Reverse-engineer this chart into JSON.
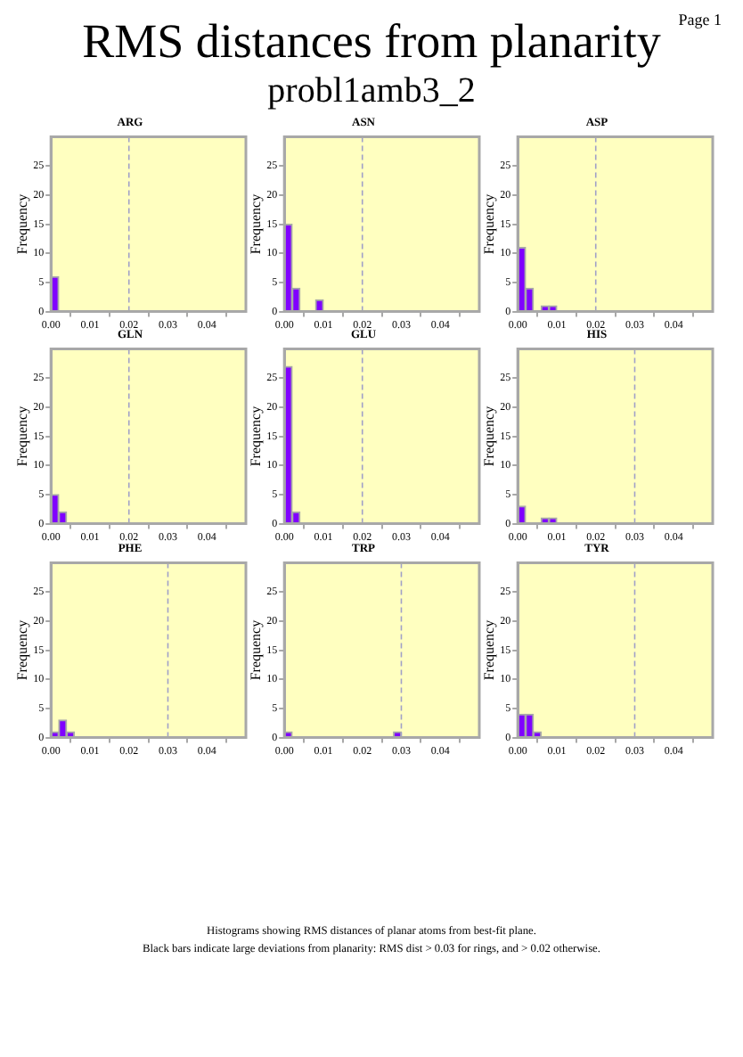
{
  "chart_data": [
    {
      "type": "histogram",
      "title": "ARG",
      "ylabel": "Frequency",
      "annotations": [
        "RMS distances from planarity",
        "probl1amb3_2",
        "Page 1",
        "Histograms showing RMS distances of planar atoms from best-fit plane.",
        "Black bars indicate large deviations from planarity: RMS dist > 0.03 for rings, and > 0.02 otherwise."
      ],
      "bins": [
        0,
        0.002,
        0.004,
        0.006,
        0.008,
        0.01,
        0.012,
        0.014,
        0.016,
        0.018,
        0.02,
        0.022,
        0.024,
        0.026,
        0.028,
        0.03,
        0.032,
        0.034,
        0.036,
        0.038,
        0.04,
        0.042,
        0.044,
        0.046,
        0.048,
        0.05
      ],
      "values": [
        6,
        0,
        0,
        0,
        0,
        0,
        0,
        0,
        0,
        0,
        0,
        0,
        0,
        0,
        0,
        0,
        0,
        0,
        0,
        0,
        0,
        0,
        0,
        0,
        0
      ],
      "color": "#8000ff",
      "xlim": [
        0,
        0.05
      ],
      "xticks": [
        {
          "value": 0,
          "label": "0.00"
        },
        {
          "value": 0.01,
          "label": "0.01"
        },
        {
          "value": 0.02,
          "label": "0.02"
        },
        {
          "value": 0.03,
          "label": "0.03"
        },
        {
          "value": 0.04,
          "label": "0.04"
        }
      ],
      "ylim": [
        0,
        30
      ],
      "yticks": [
        0,
        5,
        10,
        15,
        20,
        25
      ],
      "ref_lines": [
        {
          "axis": "x",
          "value": 0.02,
          "color": "#a0a0c8",
          "line_style": "dashed"
        }
      ]
    },
    {
      "type": "histogram",
      "title": "ASN",
      "ylabel": "Frequency",
      "bins": [
        0,
        0.002,
        0.004,
        0.006,
        0.008,
        0.01,
        0.012,
        0.014,
        0.016,
        0.018,
        0.02,
        0.022,
        0.024,
        0.026,
        0.028,
        0.03,
        0.032,
        0.034,
        0.036,
        0.038,
        0.04,
        0.042,
        0.044,
        0.046,
        0.048,
        0.05
      ],
      "values": [
        15,
        4,
        0,
        0,
        2,
        0,
        0,
        0,
        0,
        0,
        0,
        0,
        0,
        0,
        0,
        0,
        0,
        0,
        0,
        0,
        0,
        0,
        0,
        0,
        0
      ],
      "color": "#8000ff",
      "xlim": [
        0,
        0.05
      ],
      "xticks": [
        {
          "value": 0,
          "label": "0.00"
        },
        {
          "value": 0.01,
          "label": "0.01"
        },
        {
          "value": 0.02,
          "label": "0.02"
        },
        {
          "value": 0.03,
          "label": "0.03"
        },
        {
          "value": 0.04,
          "label": "0.04"
        }
      ],
      "ylim": [
        0,
        30
      ],
      "yticks": [
        0,
        5,
        10,
        15,
        20,
        25
      ],
      "ref_lines": [
        {
          "axis": "x",
          "value": 0.02,
          "color": "#a0a0c8",
          "line_style": "dashed"
        }
      ]
    },
    {
      "type": "histogram",
      "title": "ASP",
      "ylabel": "Frequency",
      "bins": [
        0,
        0.002,
        0.004,
        0.006,
        0.008,
        0.01,
        0.012,
        0.014,
        0.016,
        0.018,
        0.02,
        0.022,
        0.024,
        0.026,
        0.028,
        0.03,
        0.032,
        0.034,
        0.036,
        0.038,
        0.04,
        0.042,
        0.044,
        0.046,
        0.048,
        0.05
      ],
      "values": [
        11,
        4,
        0,
        1,
        1,
        0,
        0,
        0,
        0,
        0,
        0,
        0,
        0,
        0,
        0,
        0,
        0,
        0,
        0,
        0,
        0,
        0,
        0,
        0,
        0
      ],
      "color": "#8000ff",
      "xlim": [
        0,
        0.05
      ],
      "xticks": [
        {
          "value": 0,
          "label": "0.00"
        },
        {
          "value": 0.01,
          "label": "0.01"
        },
        {
          "value": 0.02,
          "label": "0.02"
        },
        {
          "value": 0.03,
          "label": "0.03"
        },
        {
          "value": 0.04,
          "label": "0.04"
        }
      ],
      "ylim": [
        0,
        30
      ],
      "yticks": [
        0,
        5,
        10,
        15,
        20,
        25
      ],
      "ref_lines": [
        {
          "axis": "x",
          "value": 0.02,
          "color": "#a0a0c8",
          "line_style": "dashed"
        }
      ]
    },
    {
      "type": "histogram",
      "title": "GLN",
      "ylabel": "Frequency",
      "bins": [
        0,
        0.002,
        0.004,
        0.006,
        0.008,
        0.01,
        0.012,
        0.014,
        0.016,
        0.018,
        0.02,
        0.022,
        0.024,
        0.026,
        0.028,
        0.03,
        0.032,
        0.034,
        0.036,
        0.038,
        0.04,
        0.042,
        0.044,
        0.046,
        0.048,
        0.05
      ],
      "values": [
        5,
        2,
        0,
        0,
        0,
        0,
        0,
        0,
        0,
        0,
        0,
        0,
        0,
        0,
        0,
        0,
        0,
        0,
        0,
        0,
        0,
        0,
        0,
        0,
        0
      ],
      "color": "#8000ff",
      "xlim": [
        0,
        0.05
      ],
      "xticks": [
        {
          "value": 0,
          "label": "0.00"
        },
        {
          "value": 0.01,
          "label": "0.01"
        },
        {
          "value": 0.02,
          "label": "0.02"
        },
        {
          "value": 0.03,
          "label": "0.03"
        },
        {
          "value": 0.04,
          "label": "0.04"
        }
      ],
      "ylim": [
        0,
        30
      ],
      "yticks": [
        0,
        5,
        10,
        15,
        20,
        25
      ],
      "ref_lines": [
        {
          "axis": "x",
          "value": 0.02,
          "color": "#a0a0c8",
          "line_style": "dashed"
        }
      ]
    },
    {
      "type": "histogram",
      "title": "GLU",
      "ylabel": "Frequency",
      "bins": [
        0,
        0.002,
        0.004,
        0.006,
        0.008,
        0.01,
        0.012,
        0.014,
        0.016,
        0.018,
        0.02,
        0.022,
        0.024,
        0.026,
        0.028,
        0.03,
        0.032,
        0.034,
        0.036,
        0.038,
        0.04,
        0.042,
        0.044,
        0.046,
        0.048,
        0.05
      ],
      "values": [
        27,
        2,
        0,
        0,
        0,
        0,
        0,
        0,
        0,
        0,
        0,
        0,
        0,
        0,
        0,
        0,
        0,
        0,
        0,
        0,
        0,
        0,
        0,
        0,
        0
      ],
      "color": "#8000ff",
      "xlim": [
        0,
        0.05
      ],
      "xticks": [
        {
          "value": 0,
          "label": "0.00"
        },
        {
          "value": 0.01,
          "label": "0.01"
        },
        {
          "value": 0.02,
          "label": "0.02"
        },
        {
          "value": 0.03,
          "label": "0.03"
        },
        {
          "value": 0.04,
          "label": "0.04"
        }
      ],
      "ylim": [
        0,
        30
      ],
      "yticks": [
        0,
        5,
        10,
        15,
        20,
        25
      ],
      "ref_lines": [
        {
          "axis": "x",
          "value": 0.02,
          "color": "#a0a0c8",
          "line_style": "dashed"
        }
      ]
    },
    {
      "type": "histogram",
      "title": "HIS",
      "ylabel": "Frequency",
      "bins": [
        0,
        0.002,
        0.004,
        0.006,
        0.008,
        0.01,
        0.012,
        0.014,
        0.016,
        0.018,
        0.02,
        0.022,
        0.024,
        0.026,
        0.028,
        0.03,
        0.032,
        0.034,
        0.036,
        0.038,
        0.04,
        0.042,
        0.044,
        0.046,
        0.048,
        0.05
      ],
      "values": [
        3,
        0,
        0,
        1,
        1,
        0,
        0,
        0,
        0,
        0,
        0,
        0,
        0,
        0,
        0,
        0,
        0,
        0,
        0,
        0,
        0,
        0,
        0,
        0,
        0
      ],
      "color": "#8000ff",
      "xlim": [
        0,
        0.05
      ],
      "xticks": [
        {
          "value": 0,
          "label": "0.00"
        },
        {
          "value": 0.01,
          "label": "0.01"
        },
        {
          "value": 0.02,
          "label": "0.02"
        },
        {
          "value": 0.03,
          "label": "0.03"
        },
        {
          "value": 0.04,
          "label": "0.04"
        }
      ],
      "ylim": [
        0,
        30
      ],
      "yticks": [
        0,
        5,
        10,
        15,
        20,
        25
      ],
      "ref_lines": [
        {
          "axis": "x",
          "value": 0.03,
          "color": "#a0a0c8",
          "line_style": "dashed"
        }
      ]
    },
    {
      "type": "histogram",
      "title": "PHE",
      "ylabel": "Frequency",
      "bins": [
        0,
        0.002,
        0.004,
        0.006,
        0.008,
        0.01,
        0.012,
        0.014,
        0.016,
        0.018,
        0.02,
        0.022,
        0.024,
        0.026,
        0.028,
        0.03,
        0.032,
        0.034,
        0.036,
        0.038,
        0.04,
        0.042,
        0.044,
        0.046,
        0.048,
        0.05
      ],
      "values": [
        1,
        3,
        1,
        0,
        0,
        0,
        0,
        0,
        0,
        0,
        0,
        0,
        0,
        0,
        0,
        0,
        0,
        0,
        0,
        0,
        0,
        0,
        0,
        0,
        0
      ],
      "color": "#8000ff",
      "xlim": [
        0,
        0.05
      ],
      "xticks": [
        {
          "value": 0,
          "label": "0.00"
        },
        {
          "value": 0.01,
          "label": "0.01"
        },
        {
          "value": 0.02,
          "label": "0.02"
        },
        {
          "value": 0.03,
          "label": "0.03"
        },
        {
          "value": 0.04,
          "label": "0.04"
        }
      ],
      "ylim": [
        0,
        30
      ],
      "yticks": [
        0,
        5,
        10,
        15,
        20,
        25
      ],
      "ref_lines": [
        {
          "axis": "x",
          "value": 0.03,
          "color": "#a0a0c8",
          "line_style": "dashed"
        }
      ]
    },
    {
      "type": "histogram",
      "title": "TRP",
      "ylabel": "Frequency",
      "bins": [
        0,
        0.002,
        0.004,
        0.006,
        0.008,
        0.01,
        0.012,
        0.014,
        0.016,
        0.018,
        0.02,
        0.022,
        0.024,
        0.026,
        0.028,
        0.03,
        0.032,
        0.034,
        0.036,
        0.038,
        0.04,
        0.042,
        0.044,
        0.046,
        0.048,
        0.05
      ],
      "values": [
        1,
        0,
        0,
        0,
        0,
        0,
        0,
        0,
        0,
        0,
        0,
        0,
        0,
        0,
        1,
        0,
        0,
        0,
        0,
        0,
        0,
        0,
        0,
        0,
        0
      ],
      "color": "#8000ff",
      "xlim": [
        0,
        0.05
      ],
      "xticks": [
        {
          "value": 0,
          "label": "0.00"
        },
        {
          "value": 0.01,
          "label": "0.01"
        },
        {
          "value": 0.02,
          "label": "0.02"
        },
        {
          "value": 0.03,
          "label": "0.03"
        },
        {
          "value": 0.04,
          "label": "0.04"
        }
      ],
      "ylim": [
        0,
        30
      ],
      "yticks": [
        0,
        5,
        10,
        15,
        20,
        25
      ],
      "ref_lines": [
        {
          "axis": "x",
          "value": 0.03,
          "color": "#a0a0c8",
          "line_style": "dashed"
        }
      ]
    },
    {
      "type": "histogram",
      "title": "TYR",
      "ylabel": "Frequency",
      "bins": [
        0,
        0.002,
        0.004,
        0.006,
        0.008,
        0.01,
        0.012,
        0.014,
        0.016,
        0.018,
        0.02,
        0.022,
        0.024,
        0.026,
        0.028,
        0.03,
        0.032,
        0.034,
        0.036,
        0.038,
        0.04,
        0.042,
        0.044,
        0.046,
        0.048,
        0.05
      ],
      "values": [
        4,
        4,
        1,
        0,
        0,
        0,
        0,
        0,
        0,
        0,
        0,
        0,
        0,
        0,
        0,
        0,
        0,
        0,
        0,
        0,
        0,
        0,
        0,
        0,
        0
      ],
      "color": "#8000ff",
      "xlim": [
        0,
        0.05
      ],
      "xticks": [
        {
          "value": 0,
          "label": "0.00"
        },
        {
          "value": 0.01,
          "label": "0.01"
        },
        {
          "value": 0.02,
          "label": "0.02"
        },
        {
          "value": 0.03,
          "label": "0.03"
        },
        {
          "value": 0.04,
          "label": "0.04"
        }
      ],
      "ylim": [
        0,
        30
      ],
      "yticks": [
        0,
        5,
        10,
        15,
        20,
        25
      ],
      "ref_lines": [
        {
          "axis": "x",
          "value": 0.03,
          "color": "#a0a0c8",
          "line_style": "dashed"
        }
      ]
    }
  ]
}
